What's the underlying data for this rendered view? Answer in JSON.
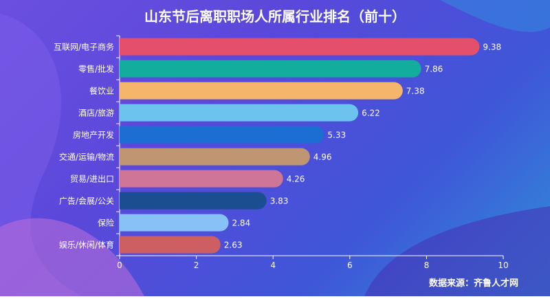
{
  "chart_data": {
    "type": "bar",
    "orientation": "horizontal",
    "title": "山东节后离职职场人所属行业排名（前十）",
    "categories": [
      "互联网/电子商务",
      "零售/批发",
      "餐饮业",
      "酒店/旅游",
      "房地产开发",
      "交通/运输/物流",
      "贸易/进出口",
      "广告/会展/公关",
      "保险",
      "娱乐/休闲/体育"
    ],
    "values": [
      9.38,
      7.86,
      7.38,
      6.22,
      5.33,
      4.96,
      4.26,
      3.83,
      2.84,
      2.63
    ],
    "value_labels": [
      "9.38",
      "7.86",
      "7.38",
      "6.22",
      "5.33",
      "4.96",
      "4.26",
      "3.83",
      "2.84",
      "2.63"
    ],
    "bar_colors": [
      "#e4506c",
      "#13ad9e",
      "#f5b66c",
      "#6bc3ee",
      "#1d6ed2",
      "#c09571",
      "#cf7698",
      "#1a4e90",
      "#88c1f5",
      "#cd5f62"
    ],
    "xlim": [
      0,
      10
    ],
    "xticks": [
      "0",
      "2",
      "4",
      "6",
      "8",
      "10"
    ],
    "grid": false,
    "legend": "none"
  },
  "source": "数据来源：齐鲁人才网",
  "colors": {
    "text": "#ffffff",
    "axis": "#ffffff"
  }
}
